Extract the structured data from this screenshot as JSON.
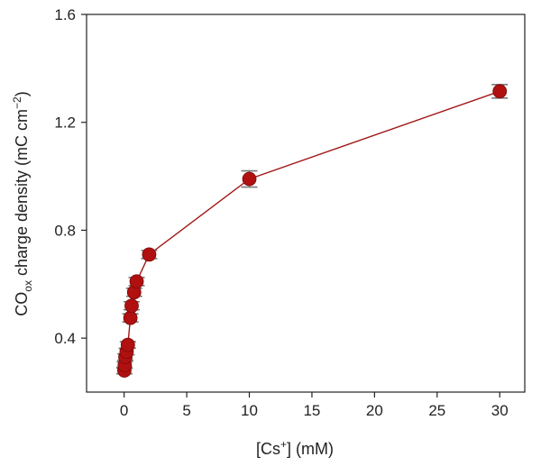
{
  "chart_data": {
    "type": "scatter",
    "xlabel_parts": [
      "[Cs",
      "+",
      "] (mM)"
    ],
    "ylabel_parts": [
      "CO",
      "ox",
      " charge density (mC cm",
      "−2",
      ")"
    ],
    "xlim": [
      -3,
      32
    ],
    "ylim": [
      0.2,
      1.6
    ],
    "xticks": [
      0,
      5,
      10,
      15,
      20,
      25,
      30
    ],
    "yticks": [
      0.4,
      0.8,
      1.2,
      1.6
    ],
    "xtick_labels": [
      "0",
      "5",
      "10",
      "15",
      "20",
      "25",
      "30"
    ],
    "ytick_labels": [
      "0.4",
      "0.8",
      "1.2",
      "1.6"
    ],
    "grid": false,
    "series": [
      {
        "connected": true,
        "x": [
          0.02,
          0.05,
          0.1,
          0.2,
          0.3,
          0.5,
          0.6,
          0.8,
          1.0,
          2.0,
          10.0,
          30.0
        ],
        "y": [
          0.28,
          0.3,
          0.33,
          0.35,
          0.375,
          0.475,
          0.52,
          0.57,
          0.61,
          0.71,
          0.99,
          1.315
        ],
        "yerr": [
          0.012,
          0.012,
          0.012,
          0.012,
          0.012,
          0.015,
          0.015,
          0.015,
          0.015,
          0.015,
          0.03,
          0.025
        ]
      }
    ],
    "colors": {
      "marker": "#b01010",
      "line": "#a01818",
      "errorbar": "#7a7a7a",
      "axis": "#222222"
    }
  }
}
